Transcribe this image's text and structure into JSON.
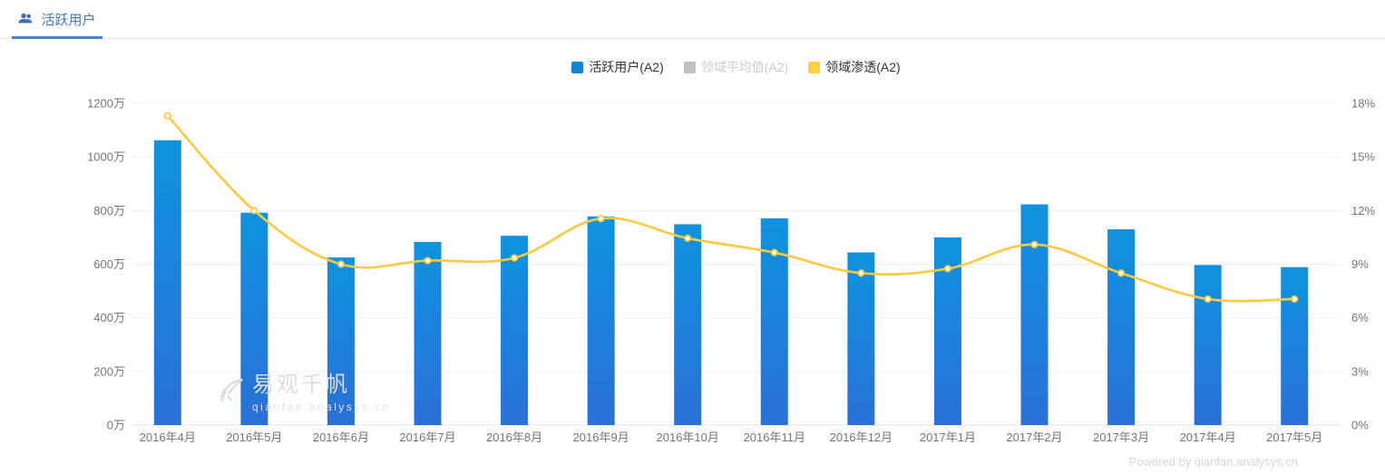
{
  "tab_bar": {
    "tabs": [
      {
        "label": "活跃用户",
        "active": true,
        "icon": "users-icon"
      }
    ]
  },
  "legend": [
    {
      "label": "活跃用户(A2)",
      "color": "#1583d6",
      "text_color": "#333333",
      "active": true
    },
    {
      "label": "领域平均值(A2)",
      "color": "#c0c0c0",
      "text_color": "#cccccc",
      "active": false
    },
    {
      "label": "领域渗透(A2)",
      "color": "#fdd13d",
      "text_color": "#333333",
      "active": true
    }
  ],
  "watermark": {
    "logo": "qianfan-logo-icon",
    "title": "易观千帆",
    "subtitle": "qianfan.analysys.cn"
  },
  "footer": {
    "text": "Powered by qianfan.analysys.cn"
  },
  "colors": {
    "bar_top": "#0e93e0",
    "bar_bottom": "#2a70d8",
    "line": "#fbca3e",
    "grid": "#f0f0f0",
    "grid_zero": "#e2e2e2",
    "axis_text": "#757575",
    "tab_accent": "#4a80cc"
  },
  "chart_data": {
    "type": "bar",
    "title": "",
    "categories": [
      "2016年4月",
      "2016年5月",
      "2016年6月",
      "2016年7月",
      "2016年8月",
      "2016年9月",
      "2016年10月",
      "2016年11月",
      "2016年12月",
      "2017年1月",
      "2017年2月",
      "2017年3月",
      "2017年4月",
      "2017年5月"
    ],
    "series": [
      {
        "name": "活跃用户(A2)",
        "type": "bar",
        "axis": "left",
        "unit": "万",
        "visible": true,
        "values": [
          1062,
          792,
          625,
          683,
          706,
          778,
          749,
          771,
          644,
          700,
          823,
          730,
          597,
          589
        ],
        "color_top": "#0e93e0",
        "color_bottom": "#2a70d8"
      },
      {
        "name": "领域平均值(A2)",
        "type": "bar",
        "axis": "left",
        "unit": "万",
        "visible": false,
        "values": [],
        "color": "#c0c0c0"
      },
      {
        "name": "领域渗透(A2)",
        "type": "line",
        "axis": "right",
        "unit": "%",
        "visible": true,
        "values": [
          17.3,
          12.0,
          9.0,
          9.2,
          9.35,
          11.55,
          10.45,
          9.65,
          8.5,
          8.75,
          10.1,
          8.5,
          7.05,
          7.05
        ],
        "color": "#fbca3e",
        "smooth": true,
        "marker": "empty-circle"
      }
    ],
    "left_axis": {
      "label": "",
      "min": 0,
      "max": 1200,
      "ticks": [
        "0万",
        "200万",
        "400万",
        "600万",
        "800万",
        "1000万",
        "1200万"
      ]
    },
    "right_axis": {
      "label": "",
      "min": 0,
      "max": 18,
      "ticks": [
        "0%",
        "3%",
        "6%",
        "9%",
        "12%",
        "15%",
        "18%"
      ]
    },
    "grid": true,
    "legend_position": "top-center"
  }
}
